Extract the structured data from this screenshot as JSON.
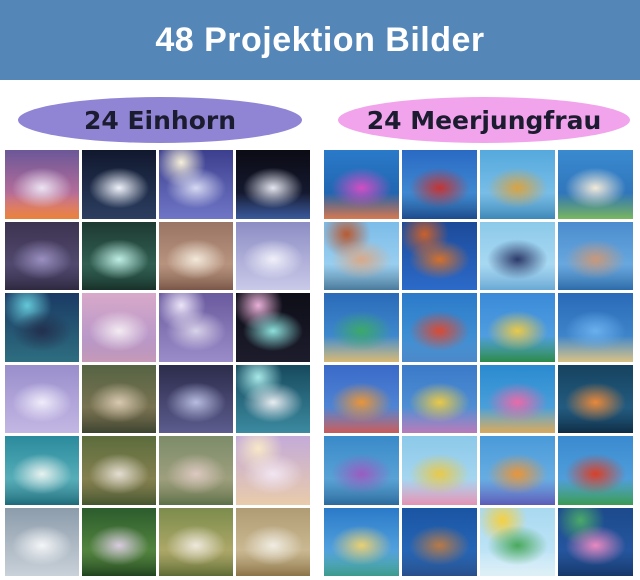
{
  "banner": {
    "title": "48 Projektion Bilder",
    "background": "#5486b8",
    "text_color": "#ffffff"
  },
  "sections": [
    {
      "label": "24 Einhorn",
      "badge_color": "#9085d5",
      "text_color": "#1c1c30"
    },
    {
      "label": "24 Meerjungfrau",
      "badge_color": "#f1a4ec",
      "text_color": "#1c1c30"
    }
  ],
  "unicorn_tiles": [
    {
      "name": "unicorn-sunset-rays",
      "base": [
        "#6b5798",
        "#e07a9a"
      ],
      "floor": "#e8823a",
      "subject": "#ece4f4"
    },
    {
      "name": "unicorn-night-glow",
      "base": [
        "#10182e",
        "#2c3e60"
      ],
      "subject": "#eef2fa"
    },
    {
      "name": "pegasus-full-moon",
      "base": [
        "#3c3f8e",
        "#7076c6"
      ],
      "subject": "#d6d9f2",
      "glow": "#f6efd9"
    },
    {
      "name": "unicorn-black-rearing",
      "base": [
        "#0b0b14",
        "#1b2240"
      ],
      "subject": "#e4e6f0",
      "floor": "#3a5a9a"
    },
    {
      "name": "unicorn-purple-drinking",
      "base": [
        "#3c3350",
        "#5e5680"
      ],
      "subject": "#9a8fc0",
      "floor": "#2e2840"
    },
    {
      "name": "unicorn-fairy-wings-teal",
      "base": [
        "#1e3a32",
        "#3c7464"
      ],
      "subject": "#bfeee4",
      "floor": "#173028"
    },
    {
      "name": "unicorn-golden-mane",
      "base": [
        "#9a7464",
        "#c9a68e"
      ],
      "subject": "#f2e8da",
      "floor": "#7a5648"
    },
    {
      "name": "pegasus-spread-wings",
      "base": [
        "#8d8dc4",
        "#c9c9e9"
      ],
      "subject": "#f0f0fa"
    },
    {
      "name": "castle-night-stars",
      "base": [
        "#1a3a64",
        "#2e6e80"
      ],
      "subject": "#22304e",
      "glow": "#64c8d8"
    },
    {
      "name": "unicorn-pink-piano",
      "base": [
        "#d8a9c9",
        "#a98fc9"
      ],
      "subject": "#f4ecf2",
      "floor": "#c79ab8"
    },
    {
      "name": "unicorn-moonlit-resting",
      "base": [
        "#6a5a9e",
        "#9a8cc9"
      ],
      "subject": "#d8d2e8",
      "glow": "#ece4f8"
    },
    {
      "name": "pegasus-teal-wings-dark",
      "base": [
        "#0e0e18",
        "#1c1c2c"
      ],
      "subject": "#8ce0dc",
      "glow": "#e8b0d8"
    },
    {
      "name": "unicorn-lavender-forest",
      "base": [
        "#9a8ecc",
        "#c3b7e4"
      ],
      "subject": "#f0ecfa"
    },
    {
      "name": "unicorn-with-maiden",
      "base": [
        "#566444",
        "#8c7a58"
      ],
      "subject": "#d8c8b0",
      "floor": "#3c4430"
    },
    {
      "name": "unicorn-glowing-violet",
      "base": [
        "#2c2c4c",
        "#5c5c8e"
      ],
      "subject": "#b8bce0"
    },
    {
      "name": "unicorn-crescent-moon",
      "base": [
        "#174a5e",
        "#3c8aa0"
      ],
      "subject": "#e8ecf0",
      "glow": "#a8e8e8"
    },
    {
      "name": "unicorn-teal-lakeside",
      "base": [
        "#2a8a9c",
        "#71c3c9"
      ],
      "subject": "#e8f2f0",
      "floor": "#1c6a7a"
    },
    {
      "name": "unicorn-mare-and-foal",
      "base": [
        "#5c6c3c",
        "#9c8c5c"
      ],
      "subject": "#e4ded2",
      "floor": "#43552e"
    },
    {
      "name": "unicorn-forest-walk",
      "base": [
        "#7c8c6a",
        "#b2aa88"
      ],
      "subject": "#dcc8c0",
      "floor": "#5c7048"
    },
    {
      "name": "pegasus-pastel-light",
      "base": [
        "#c3abd9",
        "#e9cbab"
      ],
      "subject": "#f2e6f2",
      "glow": "#f8e8c8"
    },
    {
      "name": "unicorn-portrait-grey",
      "base": [
        "#8c9cab",
        "#c9d1d9"
      ],
      "subject": "#f4f6f8"
    },
    {
      "name": "unicorn-girl-green-forest",
      "base": [
        "#2c5c2c",
        "#6a9c4a"
      ],
      "subject": "#d9cce0",
      "floor": "#1f441f"
    },
    {
      "name": "two-unicorns-golden-glade",
      "base": [
        "#7c8c4c",
        "#c9b878"
      ],
      "subject": "#eee8dc",
      "floor": "#5c6c34"
    },
    {
      "name": "white-horse-birch-autumn",
      "base": [
        "#b09c74",
        "#d9c9a3"
      ],
      "subject": "#f0ece2",
      "floor": "#8c7448"
    }
  ],
  "mermaid_tiles": [
    {
      "name": "mermaid-pink-fairy-wings",
      "base": [
        "#2a7ac9",
        "#1c5aa3"
      ],
      "subject": "#d24ec4",
      "floor": "#d87a50"
    },
    {
      "name": "mermaid-red-tail-green-hair",
      "base": [
        "#2a6ac4",
        "#4a9ad9"
      ],
      "subject": "#c43434",
      "floor": "#1c4a8c"
    },
    {
      "name": "mermaid-golden-bubbles",
      "base": [
        "#55a9dd",
        "#8cc9ee"
      ],
      "subject": "#d9a343",
      "floor": "#3c88b8"
    },
    {
      "name": "mermaid-in-white-shell",
      "base": [
        "#3a8ad0",
        "#2a6ab0"
      ],
      "subject": "#f2ead9",
      "floor": "#7ab860"
    },
    {
      "name": "mermaid-redhead-on-rock",
      "base": [
        "#7cbce9",
        "#a9d9f4"
      ],
      "subject": "#d9a989",
      "glow": "#b85a32",
      "floor": "#4a7a9c"
    },
    {
      "name": "mermaid-orange-tail-deep-blue",
      "base": [
        "#1c4a99",
        "#2c6ac9"
      ],
      "subject": "#d4702c",
      "glow": "#c9602c"
    },
    {
      "name": "mermaid-navy-tail-splash",
      "base": [
        "#8cc9e9",
        "#b8e2f8"
      ],
      "subject": "#2c3a6a",
      "floor": "#6aa9d4"
    },
    {
      "name": "mermaid-brunette-wading",
      "base": [
        "#4a8cce",
        "#7ab8e9"
      ],
      "subject": "#c9987a",
      "floor": "#2c6aa9"
    },
    {
      "name": "cartoon-mermaid-green-tail",
      "base": [
        "#2a6ab8",
        "#4a9ad9"
      ],
      "subject": "#3ca96a",
      "floor": "#d9b873"
    },
    {
      "name": "cartoon-mermaid-red-hair-blue-tail",
      "base": [
        "#2a7ac9",
        "#4a9ad9"
      ],
      "subject": "#d94a34",
      "floor": "#4a88c9"
    },
    {
      "name": "cartoon-mermaid-blonde-seaweed",
      "base": [
        "#3a8ad9",
        "#5ca9e4"
      ],
      "subject": "#e9c94a",
      "floor": "#2c8a4a"
    },
    {
      "name": "cartoon-girl-blue-shell",
      "base": [
        "#2a6ab8",
        "#4a94d4"
      ],
      "subject": "#6ab0ee",
      "floor": "#d9c083"
    },
    {
      "name": "cartoon-mermaid-orange-hair-sitting",
      "base": [
        "#3a6ac9",
        "#5c94d9"
      ],
      "subject": "#e9953a",
      "floor": "#c95a5a"
    },
    {
      "name": "cartoon-mermaid-big-blonde-shell",
      "base": [
        "#3a7ac9",
        "#5c9ad9"
      ],
      "subject": "#e9c948",
      "floor": "#b87ab8"
    },
    {
      "name": "cartoon-mermaid-pink-dancer",
      "base": [
        "#2a8ad0",
        "#5cacdf"
      ],
      "subject": "#e96aa9",
      "floor": "#d9a95c"
    },
    {
      "name": "cartoon-mermaid-dark-reef",
      "base": [
        "#16425e",
        "#2a6a94"
      ],
      "subject": "#e9883a",
      "floor": "#0e2c44"
    },
    {
      "name": "cartoon-mermaid-purple-tail-fish",
      "base": [
        "#3a8ac9",
        "#6ab0dd"
      ],
      "subject": "#9a5cc0",
      "floor": "#2a6a9c"
    },
    {
      "name": "anime-mermaid-blonde-pink-tail",
      "base": [
        "#8cc9e9",
        "#b2ddf4"
      ],
      "subject": "#e9c94a",
      "floor": "#e493b4"
    },
    {
      "name": "cartoon-mermaid-violet-tail",
      "base": [
        "#4a9ad9",
        "#78b8e9"
      ],
      "subject": "#e9953a",
      "floor": "#5c5cb8"
    },
    {
      "name": "cartoon-mermaid-ariel-green-tail",
      "base": [
        "#3a8ad0",
        "#5ca9e0"
      ],
      "subject": "#d94028",
      "floor": "#3a9a54"
    },
    {
      "name": "anime-mermaid-blonde-teal-tail",
      "base": [
        "#2a7ac9",
        "#6ab8e9"
      ],
      "subject": "#e9d073",
      "floor": "#3c9a8c"
    },
    {
      "name": "anime-mermaid-brunette-deep-blue",
      "base": [
        "#1a55a3",
        "#2c6ec0"
      ],
      "subject": "#b87a48",
      "floor": "#28508c"
    },
    {
      "name": "cartoon-mermaid-sun-and-wave",
      "base": [
        "#a9d9f0",
        "#c9e9fa"
      ],
      "subject": "#4aa95c",
      "glow": "#f4d043",
      "floor": "#def0f6"
    },
    {
      "name": "anime-mermaid-purple-hair-pink-tail",
      "base": [
        "#1c4a8c",
        "#2a5ca9"
      ],
      "subject": "#e989c0",
      "glow": "#4aa96a",
      "floor": "#16386a"
    }
  ]
}
